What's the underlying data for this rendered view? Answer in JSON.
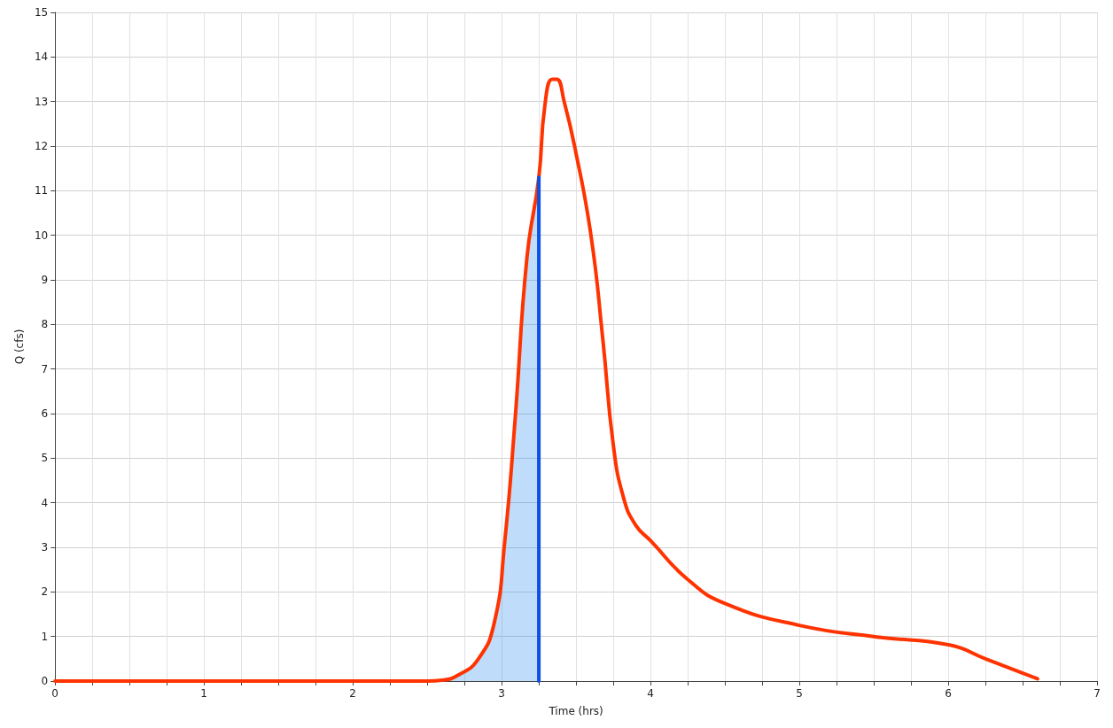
{
  "chart_data": {
    "type": "line",
    "xlabel": "Time (hrs)",
    "ylabel": "Q (cfs)",
    "xlim": [
      0,
      7
    ],
    "ylim": [
      0,
      15
    ],
    "xticks": [
      0,
      {
        "value": 0.25,
        "label": null
      },
      {
        "value": 0.5,
        "label": null
      },
      {
        "value": 0.75,
        "label": null
      },
      1,
      {
        "value": 1.25,
        "label": null
      },
      {
        "value": 1.5,
        "label": null
      },
      {
        "value": 1.75,
        "label": null
      },
      2,
      {
        "value": 2.25,
        "label": null
      },
      {
        "value": 2.5,
        "label": null
      },
      {
        "value": 2.75,
        "label": null
      },
      3,
      {
        "value": 3.25,
        "label": null
      },
      {
        "value": 3.5,
        "label": null
      },
      {
        "value": 3.75,
        "label": null
      },
      4,
      {
        "value": 4.25,
        "label": null
      },
      {
        "value": 4.5,
        "label": null
      },
      {
        "value": 4.75,
        "label": null
      },
      5,
      {
        "value": 5.25,
        "label": null
      },
      {
        "value": 5.5,
        "label": null
      },
      {
        "value": 5.75,
        "label": null
      },
      6,
      {
        "value": 6.25,
        "label": null
      },
      {
        "value": 6.5,
        "label": null
      },
      {
        "value": 6.75,
        "label": null
      },
      7
    ],
    "yticks": [
      0,
      1,
      2,
      3,
      4,
      5,
      6,
      7,
      8,
      9,
      10,
      11,
      12,
      13,
      14,
      15
    ],
    "grid": true,
    "series": [
      {
        "type": "area",
        "color": "#2b8cf0",
        "x": [
          2.6,
          2.7,
          2.84,
          2.95,
          3.02,
          3.09,
          3.17,
          3.25
        ],
        "values": [
          0.02,
          0.12,
          0.48,
          1.3,
          3.1,
          5.85,
          9.5,
          11.3
        ]
      },
      {
        "color": "#ff3300",
        "x": [
          0,
          1,
          2,
          2.5,
          2.6,
          2.7,
          2.84,
          2.95,
          3.02,
          3.09,
          3.17,
          3.25,
          3.29,
          3.34,
          3.37,
          3.42,
          3.49,
          3.6,
          3.68,
          3.75,
          3.82,
          3.9,
          4.0,
          4.25,
          4.5,
          5.0,
          5.52,
          6.01,
          6.25,
          6.6
        ],
        "values": [
          0,
          0,
          0,
          0,
          0.02,
          0.12,
          0.48,
          1.3,
          3.1,
          5.85,
          9.5,
          11.3,
          12.9,
          13.5,
          13.5,
          13.0,
          12.0,
          10.0,
          7.66,
          5.3,
          4.1,
          3.5,
          3.15,
          2.28,
          1.74,
          1.25,
          0.99,
          0.81,
          0.5,
          0.05
        ]
      },
      {
        "color": "#0a50e6",
        "x": [
          3.25,
          3.25
        ],
        "values": [
          0,
          11.3
        ]
      }
    ]
  }
}
